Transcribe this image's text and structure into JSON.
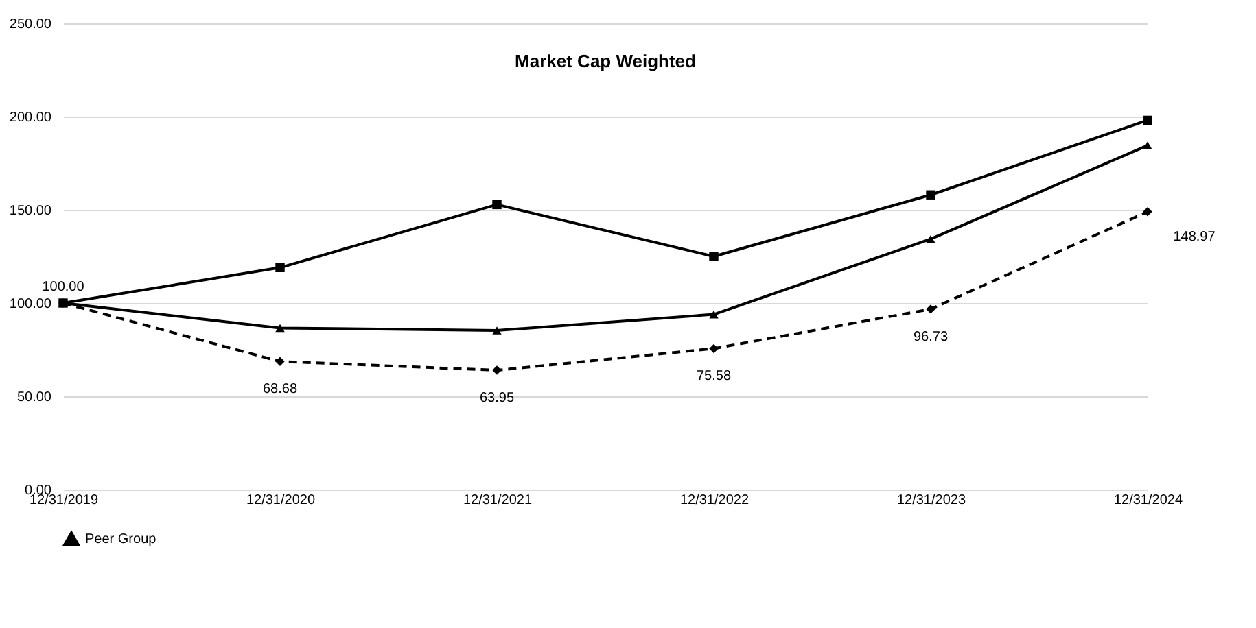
{
  "chart_data": {
    "type": "line",
    "title": "Market Cap Weighted",
    "categories": [
      "12/31/2019",
      "12/31/2020",
      "12/31/2021",
      "12/31/2022",
      "12/31/2023",
      "12/31/2024"
    ],
    "series": [
      {
        "name": "Peer Group",
        "color": "#000000",
        "marker": "triangle",
        "line_style": "solid",
        "values": [
          100,
          86.6,
          85.3,
          93.9,
          134.3,
          184.5
        ]
      },
      {
        "color": "#000000",
        "marker": "diamond",
        "line_style": "dashed",
        "values": [
          100,
          68.68,
          63.95,
          75.58,
          96.73,
          148.97
        ],
        "value_labels": [
          "100.00",
          "68.68",
          "63.95",
          "75.58",
          "96.73",
          "148.97"
        ]
      },
      {
        "color": "#000000",
        "marker": "square",
        "line_style": "solid",
        "values": [
          100,
          119,
          152.8,
          125,
          158,
          198
        ]
      }
    ],
    "ylim": [
      0,
      250
    ],
    "yticks": [
      {
        "value": 0,
        "label": "0.00"
      },
      {
        "value": 50,
        "label": "50.00"
      },
      {
        "value": 100,
        "label": "100.00"
      },
      {
        "value": 150,
        "label": "150.00"
      },
      {
        "value": 200,
        "label": "200.00"
      },
      {
        "value": 250,
        "label": "250.00"
      }
    ],
    "grid": "y",
    "legend": "bottom"
  }
}
